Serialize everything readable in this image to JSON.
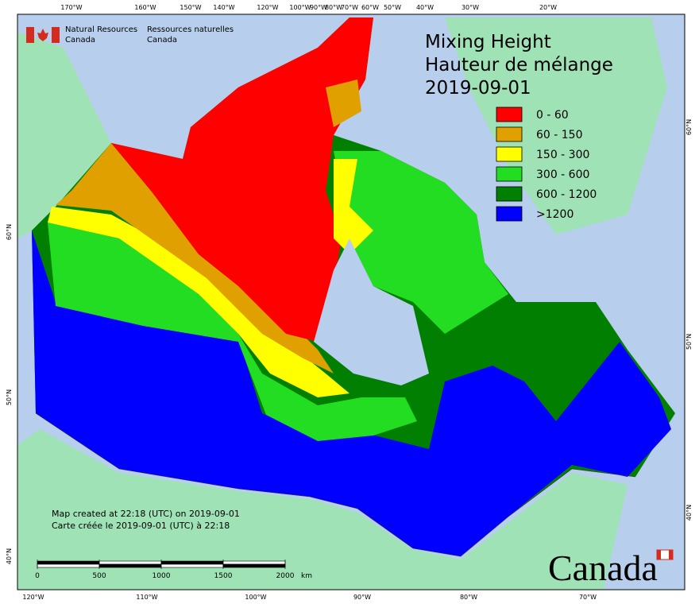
{
  "header": {
    "agency_en": "Natural Resources",
    "agency_en_2": "Canada",
    "agency_fr": "Ressources naturelles",
    "agency_fr_2": "Canada"
  },
  "title": {
    "en": "Mixing Height",
    "fr": "Hauteur de mélange",
    "date": "2019-09-01"
  },
  "legend": [
    {
      "label": "0 - 60",
      "color": "#ff0000"
    },
    {
      "label": "60 - 150",
      "color": "#e0a000"
    },
    {
      "label": "150 - 300",
      "color": "#ffff00"
    },
    {
      "label": "300 - 600",
      "color": "#22dd22"
    },
    {
      "label": "600 - 1200",
      "color": "#007f00"
    },
    {
      "label": ">1200",
      "color": "#0000ff"
    }
  ],
  "top_labels": [
    "170°W",
    "160°W",
    "150°W",
    "140°W",
    "120°W",
    "100°W",
    "90°W",
    "80°W",
    "70°W",
    "60°W",
    "50°W",
    "40°W",
    "30°W",
    "20°W"
  ],
  "bottom_labels": [
    "120°W",
    "110°W",
    "100°W",
    "90°W",
    "80°W",
    "70°W"
  ],
  "left_labels": [
    "60°N",
    "50°N",
    "40°N"
  ],
  "right_labels": [
    "60°N",
    "50°N",
    "40°N"
  ],
  "credit": [
    "Map created at 22:18 (UTC) on 2019-09-01",
    "Carte créée le 2019-09-01 (UTC) à 22:18"
  ],
  "scale": {
    "ticks": [
      0,
      500,
      1000,
      1500,
      2000
    ],
    "unit": "km"
  },
  "wordmark": "Canada"
}
